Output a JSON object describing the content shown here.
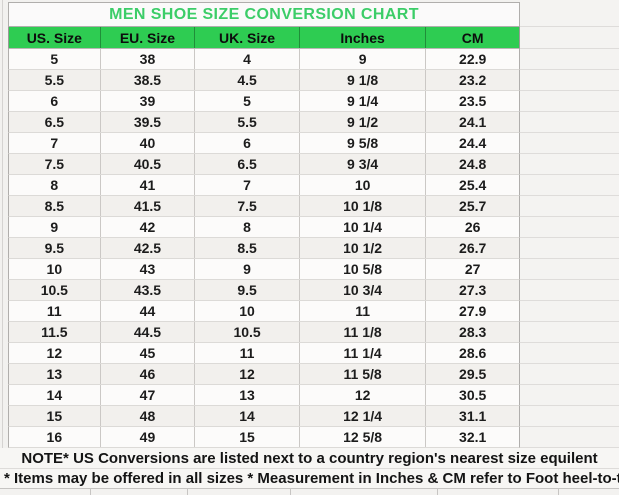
{
  "title": "MEN SHOE SIZE CONVERSION CHART",
  "notes": [
    "NOTE* US Conversions are listed next to a country region's nearest size equilent",
    "* Items may be offered in all sizes * Measurement in Inches & CM refer to Foot heel-to-toe"
  ],
  "colors": {
    "header_bg": "#2ecc52",
    "title_text": "#3ccd68"
  },
  "chart_data": {
    "type": "table",
    "title": "MEN SHOE SIZE CONVERSION CHART",
    "columns": [
      "US. Size",
      "EU. Size",
      "UK. Size",
      "Inches",
      "CM"
    ],
    "rows": [
      [
        "5",
        "38",
        "4",
        "9",
        "22.9"
      ],
      [
        "5.5",
        "38.5",
        "4.5",
        "9 1/8",
        "23.2"
      ],
      [
        "6",
        "39",
        "5",
        "9 1/4",
        "23.5"
      ],
      [
        "6.5",
        "39.5",
        "5.5",
        "9 1/2",
        "24.1"
      ],
      [
        "7",
        "40",
        "6",
        "9 5/8",
        "24.4"
      ],
      [
        "7.5",
        "40.5",
        "6.5",
        "9 3/4",
        "24.8"
      ],
      [
        "8",
        "41",
        "7",
        "10",
        "25.4"
      ],
      [
        "8.5",
        "41.5",
        "7.5",
        "10 1/8",
        "25.7"
      ],
      [
        "9",
        "42",
        "8",
        "10 1/4",
        "26"
      ],
      [
        "9.5",
        "42.5",
        "8.5",
        "10 1/2",
        "26.7"
      ],
      [
        "10",
        "43",
        "9",
        "10 5/8",
        "27"
      ],
      [
        "10.5",
        "43.5",
        "9.5",
        "10 3/4",
        "27.3"
      ],
      [
        "11",
        "44",
        "10",
        "11",
        "27.9"
      ],
      [
        "11.5",
        "44.5",
        "10.5",
        "11 1/8",
        "28.3"
      ],
      [
        "12",
        "45",
        "11",
        "11 1/4",
        "28.6"
      ],
      [
        "13",
        "46",
        "12",
        "11 5/8",
        "29.5"
      ],
      [
        "14",
        "47",
        "13",
        "12",
        "30.5"
      ],
      [
        "15",
        "48",
        "14",
        "12 1/4",
        "31.1"
      ],
      [
        "16",
        "49",
        "15",
        "12 5/8",
        "32.1"
      ]
    ]
  }
}
